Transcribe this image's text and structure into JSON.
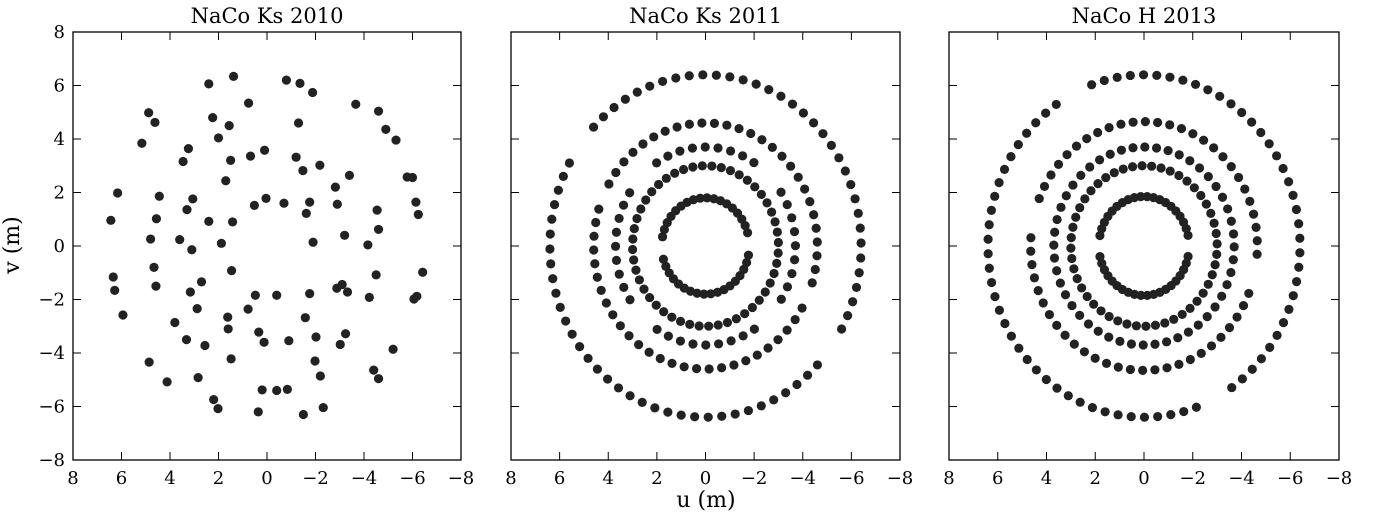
{
  "figure": {
    "xlabel": "u (m)",
    "ylabel": "v (m)"
  },
  "chart_data": [
    {
      "type": "scatter",
      "title": "NaCo Ks 2010",
      "xlabel": "u (m)",
      "ylabel": "v (m)",
      "xlim": [
        8,
        -8
      ],
      "ylim": [
        -8,
        8
      ],
      "xticks": [
        8,
        6,
        4,
        2,
        0,
        -2,
        -4,
        -6,
        -8
      ],
      "yticks": [
        8,
        6,
        4,
        2,
        0,
        -2,
        -4,
        -6,
        -8
      ],
      "xtick_labels": [
        "8",
        "6",
        "4",
        "2",
        "0",
        "−2",
        "−4",
        "−6",
        "−8"
      ],
      "ytick_labels": [
        "8",
        "6",
        "4",
        "2",
        "0",
        "−2",
        "−4",
        "−6",
        "−8"
      ],
      "y_axis_labels_shown": true,
      "grid": false,
      "point_color": "#222222",
      "points": [
        [
          6.44,
          0.96
        ],
        [
          6.16,
          1.98
        ],
        [
          6.34,
          -1.16
        ],
        [
          6.28,
          -1.66
        ],
        [
          5.94,
          -2.58
        ],
        [
          5.16,
          3.84
        ],
        [
          4.88,
          4.98
        ],
        [
          4.62,
          4.62
        ],
        [
          4.56,
          1.02
        ],
        [
          4.44,
          1.86
        ],
        [
          4.8,
          0.26
        ],
        [
          4.66,
          -0.8
        ],
        [
          4.58,
          -1.5
        ],
        [
          4.86,
          -4.34
        ],
        [
          4.12,
          -5.08
        ],
        [
          3.8,
          -2.86
        ],
        [
          3.46,
          3.16
        ],
        [
          3.24,
          3.64
        ],
        [
          3.3,
          1.36
        ],
        [
          3.06,
          1.76
        ],
        [
          3.6,
          0.24
        ],
        [
          3.1,
          -0.14
        ],
        [
          3.16,
          -1.72
        ],
        [
          2.88,
          -2.34
        ],
        [
          3.32,
          -3.5
        ],
        [
          2.84,
          -4.92
        ],
        [
          2.4,
          6.06
        ],
        [
          2.24,
          4.8
        ],
        [
          2.0,
          4.04
        ],
        [
          2.4,
          0.92
        ],
        [
          2.7,
          -1.34
        ],
        [
          2.56,
          -3.72
        ],
        [
          2.2,
          -5.74
        ],
        [
          2.02,
          -6.08
        ],
        [
          1.38,
          6.34
        ],
        [
          1.56,
          4.5
        ],
        [
          1.5,
          3.2
        ],
        [
          1.7,
          2.44
        ],
        [
          1.42,
          0.9
        ],
        [
          1.46,
          -0.92
        ],
        [
          1.6,
          -3.1
        ],
        [
          1.48,
          -4.22
        ],
        [
          1.88,
          0.1
        ],
        [
          1.62,
          -2.66
        ],
        [
          0.76,
          5.34
        ],
        [
          0.68,
          3.36
        ],
        [
          0.52,
          1.52
        ],
        [
          0.78,
          -2.36
        ],
        [
          0.48,
          -1.84
        ],
        [
          0.34,
          -3.22
        ],
        [
          0.1,
          3.58
        ],
        [
          0.04,
          1.78
        ],
        [
          0.12,
          -3.6
        ],
        [
          0.2,
          -5.38
        ],
        [
          0.36,
          -6.2
        ],
        [
          -0.8,
          6.2
        ],
        [
          -0.7,
          1.6
        ],
        [
          -0.4,
          -1.84
        ],
        [
          -0.9,
          -3.54
        ],
        [
          -0.4,
          -5.4
        ],
        [
          -0.84,
          -5.36
        ],
        [
          -1.36,
          6.08
        ],
        [
          -1.88,
          5.74
        ],
        [
          -1.3,
          4.6
        ],
        [
          -1.2,
          3.32
        ],
        [
          -1.48,
          2.82
        ],
        [
          -1.76,
          1.64
        ],
        [
          -1.62,
          1.22
        ],
        [
          -1.9,
          0.14
        ],
        [
          -1.76,
          -1.78
        ],
        [
          -1.58,
          -2.68
        ],
        [
          -2.02,
          -3.4
        ],
        [
          -1.98,
          -4.3
        ],
        [
          -1.5,
          -6.3
        ],
        [
          -2.32,
          -6.04
        ],
        [
          -2.2,
          -4.86
        ],
        [
          -2.18,
          3.02
        ],
        [
          -2.82,
          2.2
        ],
        [
          -2.9,
          1.56
        ],
        [
          -3.1,
          -1.44
        ],
        [
          -3.32,
          -1.72
        ],
        [
          -2.88,
          -1.58
        ],
        [
          -3.24,
          -3.28
        ],
        [
          -3.02,
          -3.68
        ],
        [
          -3.4,
          2.64
        ],
        [
          -3.2,
          0.4
        ],
        [
          -3.66,
          5.3
        ],
        [
          -4.6,
          5.04
        ],
        [
          -4.9,
          4.36
        ],
        [
          -4.16,
          0.04
        ],
        [
          -4.5,
          -1.08
        ],
        [
          -4.22,
          -1.92
        ],
        [
          -4.4,
          -4.64
        ],
        [
          -4.6,
          -4.96
        ],
        [
          -5.2,
          -3.86
        ],
        [
          -5.32,
          3.96
        ],
        [
          -5.78,
          2.58
        ],
        [
          -6.14,
          1.64
        ],
        [
          -6.24,
          1.18
        ],
        [
          -6.18,
          -1.88
        ],
        [
          -6.42,
          -0.98
        ],
        [
          -4.54,
          1.34
        ],
        [
          -4.6,
          0.62
        ],
        [
          -6.06,
          -1.98
        ],
        [
          -6.0,
          2.56
        ]
      ]
    },
    {
      "type": "scatter",
      "title": "NaCo Ks 2011",
      "xlabel": "",
      "ylabel": "",
      "xlim": [
        8,
        -8
      ],
      "ylim": [
        -8,
        8
      ],
      "xticks": [
        8,
        6,
        4,
        2,
        0,
        -2,
        -4,
        -6,
        -8
      ],
      "xtick_labels": [
        "8",
        "6",
        "4",
        "2",
        "0",
        "−2",
        "−4",
        "−6",
        "−8"
      ],
      "y_axis_labels_shown": false,
      "grid": false,
      "point_color": "#222222",
      "rings": [
        {
          "radius": 1.8,
          "points": 40,
          "gap_degrees": [
            [
              -8,
              8
            ],
            [
              172,
              188
            ]
          ]
        },
        {
          "radius": 3.0,
          "points": 48
        },
        {
          "radius": 3.7,
          "points": 44,
          "gap_degrees": [
            [
              40,
              52
            ],
            [
              130,
              140
            ],
            [
              220,
              232
            ],
            [
              310,
              320
            ]
          ]
        },
        {
          "radius": 4.6,
          "points": 56,
          "gap_degrees": [
            [
              20,
              28
            ],
            [
              200,
              208
            ]
          ]
        },
        {
          "radius": 6.4,
          "points": 72,
          "gap_degrees": [
            [
              30,
              40
            ],
            [
              210,
              220
            ]
          ]
        }
      ]
    },
    {
      "type": "scatter",
      "title": "NaCo H 2013",
      "xlabel": "",
      "ylabel": "",
      "xlim": [
        8,
        -8
      ],
      "ylim": [
        -8,
        8
      ],
      "xticks": [
        8,
        6,
        4,
        2,
        0,
        -2,
        -4,
        -6,
        -8
      ],
      "xtick_labels": [
        "8",
        "6",
        "4",
        "2",
        "0",
        "−2",
        "−4",
        "−6",
        "−8"
      ],
      "y_axis_labels_shown": false,
      "grid": false,
      "point_color": "#222222",
      "rings": [
        {
          "radius": 1.85,
          "points": 44,
          "gap_degrees": [
            [
              -10,
              10
            ],
            [
              170,
              190
            ]
          ]
        },
        {
          "radius": 3.0,
          "points": 48
        },
        {
          "radius": 3.7,
          "points": 48
        },
        {
          "radius": 4.65,
          "points": 58,
          "gap_degrees": [
            [
              10,
              20
            ],
            [
              190,
              200
            ]
          ]
        },
        {
          "radius": 6.4,
          "points": 74,
          "gap_degrees": [
            [
              60,
              70
            ],
            [
              240,
              250
            ]
          ]
        }
      ]
    }
  ]
}
